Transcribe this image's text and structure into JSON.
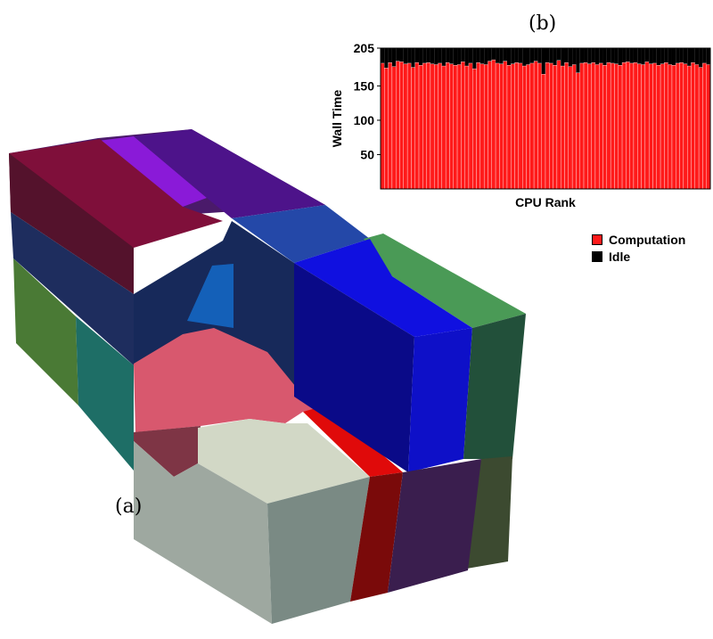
{
  "labels": {
    "panel_a": "(a)",
    "panel_b": "(b)"
  },
  "legend": [
    {
      "name": "Computation",
      "color": "#ff1a1a"
    },
    {
      "name": "Idle",
      "color": "#000000"
    }
  ],
  "chart_data": {
    "type": "bar",
    "stacked": true,
    "xlabel": "CPU Rank",
    "ylabel": "Wall Time",
    "ylim": [
      0,
      205
    ],
    "yticks": [
      50,
      100,
      150,
      205
    ],
    "grid": false,
    "legend_position": "right",
    "series": [
      {
        "name": "Computation",
        "color": "#ff1a1a",
        "values": [
          183,
          176,
          184,
          178,
          186,
          185,
          182,
          183,
          177,
          184,
          180,
          183,
          184,
          182,
          181,
          183,
          179,
          184,
          182,
          180,
          181,
          185,
          179,
          183,
          175,
          184,
          182,
          181,
          186,
          188,
          183,
          182,
          186,
          180,
          182,
          184,
          183,
          179,
          181,
          183,
          186,
          183,
          167,
          184,
          183,
          180,
          187,
          179,
          184,
          178,
          181,
          169,
          183,
          184,
          182,
          184,
          181,
          183,
          180,
          184,
          183,
          182,
          180,
          184,
          185,
          183,
          184,
          182,
          181,
          185,
          182,
          183,
          180,
          182,
          184,
          181,
          180,
          183,
          184,
          182,
          179,
          184,
          181,
          177,
          183,
          181
        ]
      },
      {
        "name": "Idle",
        "color": "#000000",
        "values": [
          22,
          29,
          21,
          27,
          19,
          20,
          23,
          22,
          28,
          21,
          25,
          22,
          21,
          23,
          24,
          22,
          26,
          21,
          23,
          25,
          24,
          20,
          26,
          22,
          30,
          21,
          23,
          24,
          19,
          17,
          22,
          23,
          19,
          25,
          23,
          21,
          22,
          26,
          24,
          22,
          19,
          22,
          38,
          21,
          22,
          25,
          18,
          26,
          21,
          27,
          24,
          36,
          22,
          21,
          23,
          21,
          24,
          22,
          25,
          21,
          22,
          23,
          25,
          21,
          20,
          22,
          21,
          23,
          24,
          20,
          23,
          22,
          25,
          23,
          21,
          24,
          25,
          22,
          21,
          23,
          26,
          21,
          24,
          28,
          22,
          24
        ]
      }
    ]
  }
}
